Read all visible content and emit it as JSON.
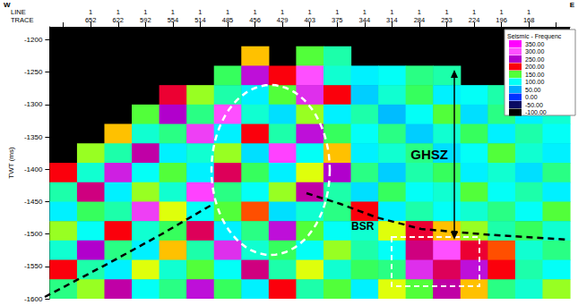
{
  "chart_data": {
    "type": "heatmap",
    "direction": [
      "W",
      "E"
    ],
    "xlabel_rows": [
      "LINE",
      "TRACE"
    ],
    "ylabel": "TWT (ms)",
    "categories": [
      null,
      652,
      622,
      592,
      554,
      514,
      485,
      456,
      429,
      403,
      375,
      344,
      314,
      284,
      253,
      224,
      196,
      168,
      null
    ],
    "line": [
      null,
      1,
      1,
      1,
      1,
      1,
      1,
      1,
      1,
      1,
      1,
      1,
      1,
      1,
      1,
      1,
      1,
      1,
      null
    ],
    "y": [
      -1195,
      -1225,
      -1255,
      -1285,
      -1315,
      -1345,
      -1375,
      -1405,
      -1435,
      -1465,
      -1495,
      -1525,
      -1555,
      -1585
    ],
    "values": [
      [
        null,
        null,
        null,
        null,
        null,
        null,
        null,
        null,
        null,
        null,
        null,
        null,
        null,
        null,
        null,
        null,
        null,
        null,
        null
      ],
      [
        null,
        null,
        null,
        null,
        null,
        null,
        null,
        180,
        null,
        150,
        120,
        null,
        null,
        null,
        null,
        null,
        null,
        null,
        null
      ],
      [
        null,
        null,
        null,
        null,
        null,
        null,
        140,
        260,
        200,
        300,
        110,
        90,
        100,
        130,
        120,
        null,
        null,
        null,
        null
      ],
      [
        null,
        null,
        null,
        null,
        210,
        160,
        120,
        90,
        150,
        280,
        200,
        70,
        110,
        140,
        90,
        100,
        120,
        130,
        110
      ],
      [
        null,
        null,
        null,
        150,
        250,
        130,
        300,
        110,
        80,
        160,
        90,
        120,
        60,
        100,
        150,
        80,
        130,
        90,
        110
      ],
      [
        null,
        null,
        180,
        110,
        130,
        290,
        90,
        200,
        120,
        260,
        140,
        100,
        130,
        70,
        110,
        140,
        90,
        120,
        100
      ],
      [
        null,
        160,
        120,
        240,
        90,
        110,
        160,
        80,
        310,
        100,
        180,
        90,
        110,
        130,
        80,
        100,
        150,
        110,
        90
      ],
      [
        200,
        110,
        270,
        100,
        150,
        90,
        220,
        140,
        90,
        170,
        250,
        130,
        70,
        120,
        140,
        90,
        110,
        80,
        130
      ],
      [
        120,
        230,
        90,
        160,
        110,
        310,
        130,
        100,
        160,
        240,
        120,
        80,
        140,
        100,
        110,
        150,
        100,
        120,
        90
      ],
      [
        90,
        140,
        120,
        290,
        170,
        100,
        150,
        190,
        80,
        110,
        130,
        200,
        90,
        120,
        100,
        110,
        130,
        100,
        150
      ],
      [
        160,
        100,
        200,
        110,
        140,
        220,
        90,
        130,
        260,
        150,
        100,
        110,
        170,
        210,
        180,
        160,
        120,
        140,
        110
      ],
      [
        110,
        250,
        130,
        90,
        180,
        120,
        280,
        110,
        140,
        100,
        160,
        120,
        100,
        230,
        300,
        210,
        190,
        110,
        130
      ],
      [
        200,
        120,
        90,
        170,
        110,
        150,
        100,
        230,
        120,
        170,
        110,
        140,
        130,
        280,
        220,
        260,
        200,
        120,
        100
      ],
      [
        130,
        160,
        240,
        100,
        130,
        260,
        140,
        90,
        200,
        120,
        150,
        90,
        170,
        150,
        240,
        180,
        130,
        110,
        160
      ]
    ],
    "ylim": [
      -1600,
      -1180
    ],
    "yticks": [
      -1600,
      -1550,
      -1500,
      -1450,
      -1400,
      -1350,
      -1300,
      -1250,
      -1200
    ],
    "colorbar": {
      "title": "Seismic - Frequenc",
      "range": [
        -100,
        350
      ],
      "ticks": [
        {
          "value": 350,
          "label": "350.00"
        },
        {
          "value": 300,
          "label": "300.00"
        },
        {
          "value": 250,
          "label": "250.00"
        },
        {
          "value": 200,
          "label": "200.00"
        },
        {
          "value": 150,
          "label": "150.00"
        },
        {
          "value": 100,
          "label": "100.00"
        },
        {
          "value": 50,
          "label": "50.00"
        },
        {
          "value": 0,
          "label": "0.00"
        },
        {
          "value": -50,
          "label": "-50.00"
        },
        {
          "value": -100,
          "label": "-100.00"
        }
      ]
    },
    "annotations": [
      "GHSZ",
      "BSR"
    ]
  }
}
